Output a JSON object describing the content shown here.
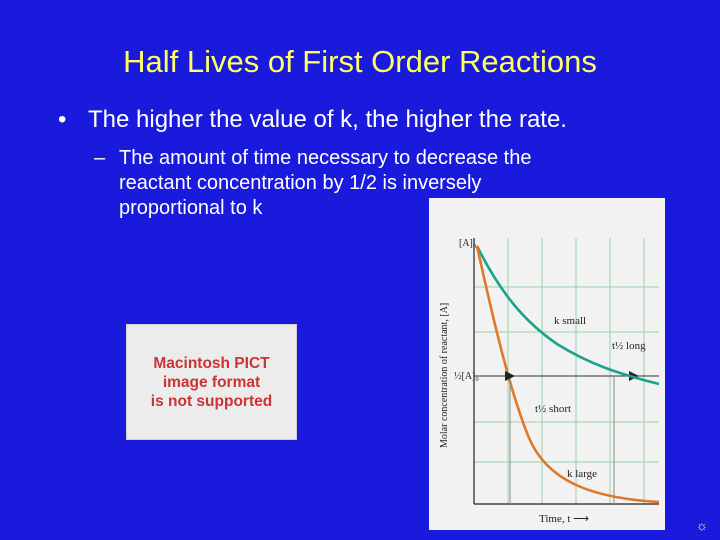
{
  "slide": {
    "title": "Half Lives of First Order Reactions",
    "bullet": "The higher the value of k, the higher the rate.",
    "bullet_marker": "•",
    "sub_marker": "–",
    "sub_lines": [
      "The amount of time necessary to decrease the",
      "reactant concentration by 1/2 is inversely",
      "proportional to k"
    ]
  },
  "placeholder": {
    "lines": [
      "Macintosh PICT",
      "image format",
      "is not supported"
    ]
  },
  "chart_data": {
    "type": "line",
    "xlabel": "Time, t",
    "ylabel": "Molar concentration of reactant, [A]",
    "y_tick_labels": [
      "[A]0",
      "1/2[A]0"
    ],
    "grid": true,
    "series": [
      {
        "name": "k small",
        "color": "#1aa38a"
      },
      {
        "name": "k large",
        "color": "#e0782a"
      }
    ],
    "annotations": [
      "t1/2 long",
      "t1/2 short"
    ]
  },
  "footer": {
    "icon": "sun-icon",
    "glyph": "☼"
  }
}
